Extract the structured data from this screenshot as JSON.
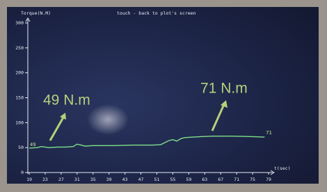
{
  "chart_data": {
    "type": "line",
    "title": "touch - back to plot's screen",
    "y_label": "Torque(N.M)",
    "x_label": "t(sec)",
    "x": [
      19,
      21,
      22,
      24,
      26,
      28,
      30,
      31,
      32,
      33,
      35,
      40,
      45,
      50,
      52,
      53,
      54,
      55,
      56,
      57,
      58,
      60,
      62,
      65,
      70,
      75,
      78
    ],
    "values": [
      49,
      50,
      52,
      50,
      51,
      51,
      52,
      57,
      55,
      53,
      54,
      54,
      55,
      55,
      56,
      60,
      64,
      66,
      63,
      68,
      70,
      71,
      72,
      73,
      73,
      72,
      71
    ],
    "color": "#7fe08a",
    "xlim": [
      19,
      79
    ],
    "xticks": [
      19,
      23,
      27,
      31,
      35,
      39,
      43,
      47,
      51,
      55,
      59,
      63,
      67,
      71,
      75,
      79
    ],
    "ylim": [
      0,
      300
    ],
    "yticks": [
      0,
      50,
      100,
      150,
      200,
      250,
      300
    ],
    "annotations": [
      "49 N.m",
      "71 N.m"
    ]
  }
}
